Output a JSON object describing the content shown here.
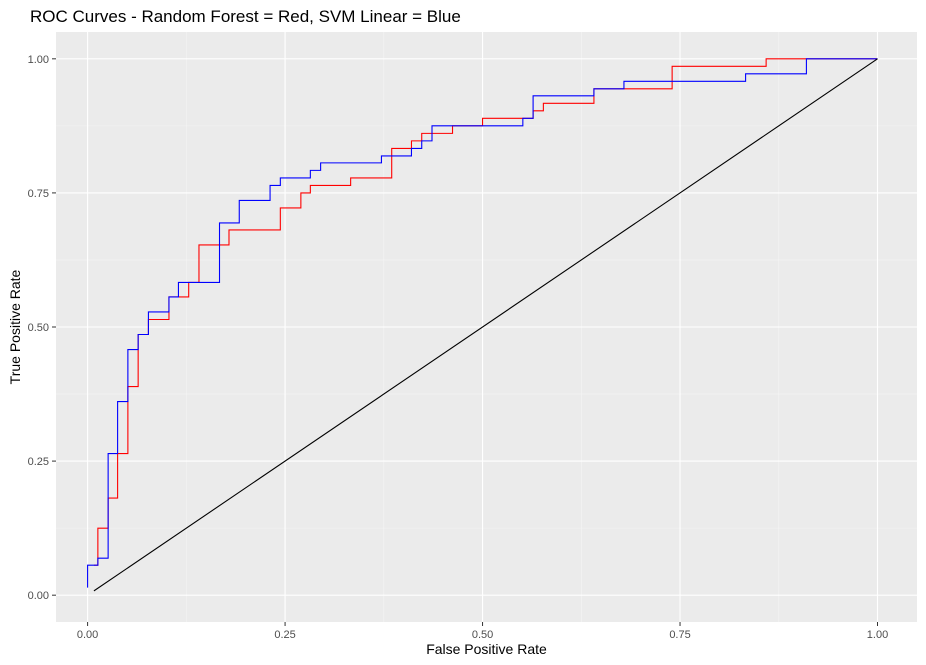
{
  "chart_data": {
    "type": "line",
    "title": "ROC Curves - Random Forest = Red, SVM Linear = Blue",
    "xlabel": "False Positive Rate",
    "ylabel": "True Positive Rate",
    "xlim": [
      -0.04,
      1.05
    ],
    "ylim": [
      -0.05,
      1.05
    ],
    "x_ticks": [
      0.0,
      0.25,
      0.5,
      0.75,
      1.0
    ],
    "x_tick_labels": [
      "0.00",
      "0.25",
      "0.50",
      "0.75",
      "1.00"
    ],
    "y_ticks": [
      0.0,
      0.25,
      0.5,
      0.75,
      1.0
    ],
    "y_tick_labels": [
      "0.00",
      "0.25",
      "0.50",
      "0.75",
      "1.00"
    ],
    "grid": true,
    "colors": {
      "panel_background": "#ebebeb",
      "grid_major": "#ffffff",
      "grid_minor": "#f5f5f5",
      "tick_text": "#4d4d4d",
      "random_forest": "#ff0000",
      "svm_linear": "#0000ff",
      "diagonal": "#000000"
    },
    "series": [
      {
        "color": "#ff0000",
        "points": [
          [
            0.008,
            0.056
          ],
          [
            0.013,
            0.056
          ],
          [
            0.013,
            0.125
          ],
          [
            0.026,
            0.125
          ],
          [
            0.026,
            0.181
          ],
          [
            0.038,
            0.181
          ],
          [
            0.038,
            0.264
          ],
          [
            0.051,
            0.264
          ],
          [
            0.051,
            0.389
          ],
          [
            0.064,
            0.389
          ],
          [
            0.064,
            0.486
          ],
          [
            0.077,
            0.486
          ],
          [
            0.077,
            0.514
          ],
          [
            0.103,
            0.514
          ],
          [
            0.103,
            0.556
          ],
          [
            0.128,
            0.556
          ],
          [
            0.128,
            0.583
          ],
          [
            0.141,
            0.583
          ],
          [
            0.141,
            0.653
          ],
          [
            0.179,
            0.653
          ],
          [
            0.179,
            0.681
          ],
          [
            0.244,
            0.681
          ],
          [
            0.244,
            0.722
          ],
          [
            0.27,
            0.722
          ],
          [
            0.27,
            0.75
          ],
          [
            0.282,
            0.75
          ],
          [
            0.282,
            0.764
          ],
          [
            0.333,
            0.764
          ],
          [
            0.333,
            0.778
          ],
          [
            0.385,
            0.778
          ],
          [
            0.385,
            0.833
          ],
          [
            0.41,
            0.833
          ],
          [
            0.41,
            0.847
          ],
          [
            0.423,
            0.847
          ],
          [
            0.423,
            0.861
          ],
          [
            0.462,
            0.861
          ],
          [
            0.462,
            0.875
          ],
          [
            0.5,
            0.875
          ],
          [
            0.5,
            0.889
          ],
          [
            0.564,
            0.889
          ],
          [
            0.564,
            0.903
          ],
          [
            0.577,
            0.903
          ],
          [
            0.577,
            0.917
          ],
          [
            0.641,
            0.917
          ],
          [
            0.641,
            0.944
          ],
          [
            0.74,
            0.944
          ],
          [
            0.74,
            0.986
          ],
          [
            0.859,
            0.986
          ],
          [
            0.859,
            1.0
          ],
          [
            1.0,
            1.0
          ]
        ]
      },
      {
        "color": "#0000ff",
        "points": [
          [
            0.0,
            0.014
          ],
          [
            0.0,
            0.056
          ],
          [
            0.013,
            0.056
          ],
          [
            0.013,
            0.069
          ],
          [
            0.026,
            0.069
          ],
          [
            0.026,
            0.264
          ],
          [
            0.038,
            0.264
          ],
          [
            0.038,
            0.361
          ],
          [
            0.051,
            0.361
          ],
          [
            0.051,
            0.458
          ],
          [
            0.064,
            0.458
          ],
          [
            0.064,
            0.486
          ],
          [
            0.077,
            0.486
          ],
          [
            0.077,
            0.528
          ],
          [
            0.103,
            0.528
          ],
          [
            0.103,
            0.556
          ],
          [
            0.115,
            0.556
          ],
          [
            0.115,
            0.583
          ],
          [
            0.167,
            0.583
          ],
          [
            0.167,
            0.694
          ],
          [
            0.192,
            0.694
          ],
          [
            0.192,
            0.736
          ],
          [
            0.231,
            0.736
          ],
          [
            0.231,
            0.764
          ],
          [
            0.244,
            0.764
          ],
          [
            0.244,
            0.778
          ],
          [
            0.282,
            0.778
          ],
          [
            0.282,
            0.792
          ],
          [
            0.295,
            0.792
          ],
          [
            0.295,
            0.806
          ],
          [
            0.372,
            0.806
          ],
          [
            0.372,
            0.819
          ],
          [
            0.41,
            0.819
          ],
          [
            0.41,
            0.833
          ],
          [
            0.423,
            0.833
          ],
          [
            0.423,
            0.847
          ],
          [
            0.436,
            0.847
          ],
          [
            0.436,
            0.875
          ],
          [
            0.551,
            0.875
          ],
          [
            0.551,
            0.889
          ],
          [
            0.564,
            0.889
          ],
          [
            0.564,
            0.931
          ],
          [
            0.641,
            0.931
          ],
          [
            0.641,
            0.944
          ],
          [
            0.679,
            0.944
          ],
          [
            0.679,
            0.958
          ],
          [
            0.833,
            0.958
          ],
          [
            0.833,
            0.972
          ],
          [
            0.91,
            0.972
          ],
          [
            0.91,
            1.0
          ],
          [
            1.0,
            1.0
          ]
        ]
      },
      {
        "color": "#000000",
        "points": [
          [
            0.008,
            0.008
          ],
          [
            1.0,
            1.0
          ]
        ]
      }
    ]
  }
}
